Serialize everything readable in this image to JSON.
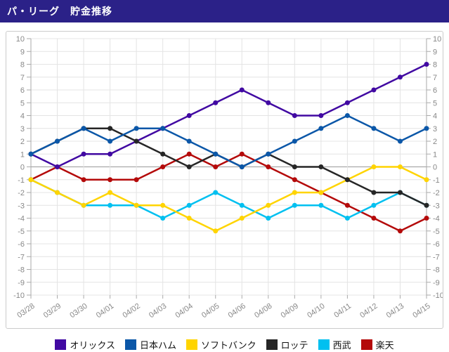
{
  "header": {
    "title": "パ・リーグ　貯金推移",
    "background_color": "#2b2188",
    "text_color": "#ffffff"
  },
  "chart_data": {
    "type": "line",
    "title": "パ・リーグ　貯金推移",
    "xlabel": "",
    "ylabel": "",
    "categories": [
      "03/28",
      "03/29",
      "03/30",
      "04/01",
      "04/02",
      "04/03",
      "04/04",
      "04/05",
      "04/06",
      "04/08",
      "04/09",
      "04/10",
      "04/11",
      "04/12",
      "04/13",
      "04/15"
    ],
    "series": [
      {
        "name": "オリックス",
        "slug": "orix",
        "color": "#4109a2",
        "values": [
          1,
          0,
          1,
          1,
          2,
          3,
          4,
          5,
          6,
          5,
          4,
          4,
          5,
          6,
          7,
          8
        ]
      },
      {
        "name": "日本ハム",
        "slug": "nipponham",
        "color": "#0b57a8",
        "values": [
          1,
          2,
          3,
          2,
          3,
          3,
          2,
          1,
          0,
          1,
          2,
          3,
          4,
          3,
          2,
          3
        ]
      },
      {
        "name": "ソフトバンク",
        "slug": "softbank",
        "color": "#ffd400",
        "values": [
          -1,
          -2,
          -3,
          -2,
          -3,
          -3,
          -4,
          -5,
          -4,
          -3,
          -2,
          -2,
          -1,
          0,
          0,
          -1
        ]
      },
      {
        "name": "ロッテ",
        "slug": "lotte",
        "color": "#262626",
        "values": [
          1,
          2,
          3,
          3,
          2,
          1,
          0,
          1,
          0,
          1,
          0,
          0,
          -1,
          -2,
          -2,
          -3
        ]
      },
      {
        "name": "西武",
        "slug": "seibu",
        "color": "#00c0f0",
        "values": [
          -1,
          -2,
          -3,
          -3,
          -3,
          -4,
          -3,
          -2,
          -3,
          -4,
          -3,
          -3,
          -4,
          -3,
          -2,
          -3
        ]
      },
      {
        "name": "楽天",
        "slug": "rakuten",
        "color": "#b40a0a",
        "values": [
          -1,
          0,
          -1,
          -1,
          -1,
          0,
          1,
          0,
          1,
          0,
          -1,
          -2,
          -3,
          -4,
          -5,
          -4
        ]
      }
    ],
    "ylim": [
      -10,
      10
    ],
    "ytick_labels": [
      10,
      9,
      8,
      7,
      6,
      5,
      4,
      3,
      2,
      1,
      0,
      -1,
      -2,
      -3,
      -4,
      -5,
      -6,
      -7,
      -8,
      -9,
      -10
    ],
    "y_axis_label_sides": "both",
    "grid": true,
    "grid_color": "#e4e4e4",
    "zero_line_color": "#999999",
    "axis_line_color": "#aaaaaa",
    "tick_label_color": "#888888",
    "x_label_rotation": -35,
    "marker": "circle",
    "legend_position": "bottom",
    "draw_order": [
      "rakuten",
      "seibu",
      "softbank",
      "orix",
      "lotte",
      "nipponham"
    ]
  }
}
